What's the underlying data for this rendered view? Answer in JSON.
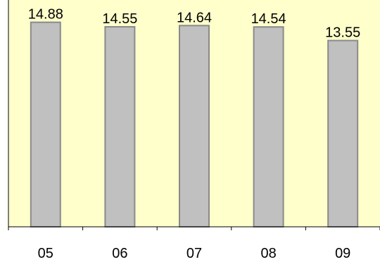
{
  "chart_data": {
    "type": "bar",
    "categories": [
      "05",
      "06",
      "07",
      "08",
      "09"
    ],
    "values": [
      14.88,
      14.55,
      14.64,
      14.54,
      13.55
    ],
    "value_labels": [
      "14.88",
      "14.55",
      "14.64",
      "14.54",
      "13.55"
    ],
    "ylim": [
      0,
      16.5
    ],
    "grid": false,
    "legend": "none"
  },
  "colors": {
    "plot_background": "#ffffcc",
    "bar_fill": "#c0c0c0",
    "bar_stroke": "#8a8a8a",
    "axis": "#000000"
  }
}
